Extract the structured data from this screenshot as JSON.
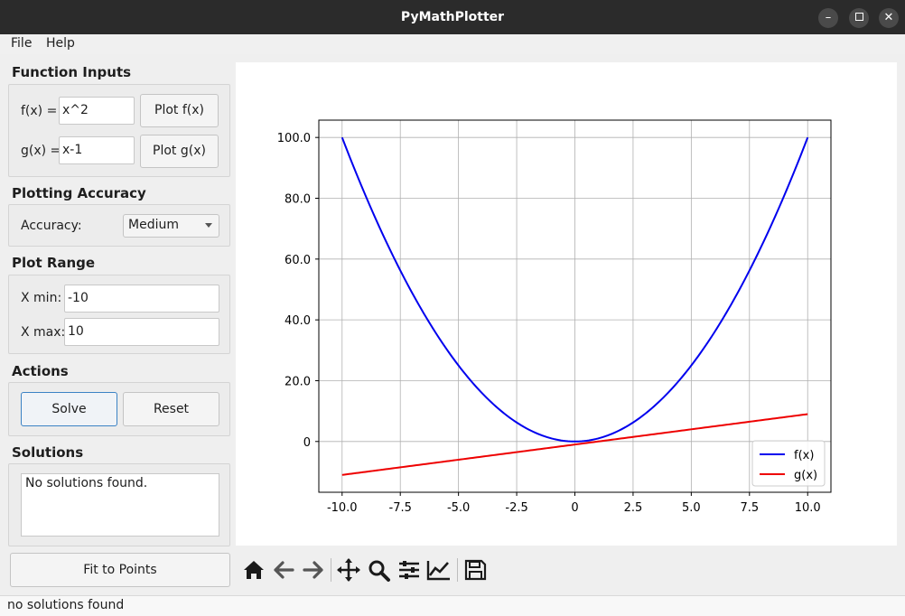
{
  "window": {
    "title": "PyMathPlotter"
  },
  "menu": {
    "file": "File",
    "help": "Help"
  },
  "sidebar": {
    "function_inputs": {
      "heading": "Function Inputs",
      "f_label": "f(x) =",
      "f_value": "x^2",
      "f_button": "Plot f(x)",
      "g_label": "g(x) =",
      "g_value": "x-1",
      "g_button": "Plot g(x)"
    },
    "accuracy": {
      "heading": "Plotting Accuracy",
      "label": "Accuracy:",
      "selected": "Medium"
    },
    "range": {
      "heading": "Plot Range",
      "xmin_label": "X min:",
      "xmin_value": "-10",
      "xmax_label": "X max:",
      "xmax_value": "10"
    },
    "actions": {
      "heading": "Actions",
      "solve": "Solve",
      "reset": "Reset"
    },
    "solutions": {
      "heading": "Solutions",
      "text": "No solutions found."
    },
    "fit_button": "Fit to Points"
  },
  "toolbar": {
    "icons": [
      "home-icon",
      "back-arrow-icon",
      "forward-arrow-icon",
      "pan-icon",
      "zoom-icon",
      "configure-subplots-icon",
      "edit-axes-icon",
      "save-icon"
    ]
  },
  "status": {
    "text": "no solutions found"
  },
  "chart_data": {
    "type": "line",
    "title": "",
    "xlabel": "",
    "ylabel": "",
    "xlim": [
      -11.0,
      11.0
    ],
    "ylim": [
      -16.7,
      105.7
    ],
    "xticks": [
      "-10.0",
      "-7.5",
      "-5.0",
      "-2.5",
      "0",
      "2.5",
      "5.0",
      "7.5",
      "10.0"
    ],
    "xtick_values": [
      -10,
      -7.5,
      -5,
      -2.5,
      0,
      2.5,
      5,
      7.5,
      10
    ],
    "yticks": [
      "0",
      "20.0",
      "40.0",
      "60.0",
      "80.0",
      "100.0"
    ],
    "ytick_values": [
      0,
      20,
      40,
      60,
      80,
      100
    ],
    "grid": true,
    "legend_position": "lower-right",
    "series": [
      {
        "name": "f(x)",
        "color": "#0000ee",
        "x_range": [
          -10,
          10
        ],
        "expression": "x^2"
      },
      {
        "name": "g(x)",
        "color": "#ee0000",
        "x_range": [
          -10,
          10
        ],
        "expression": "x-1"
      }
    ]
  }
}
